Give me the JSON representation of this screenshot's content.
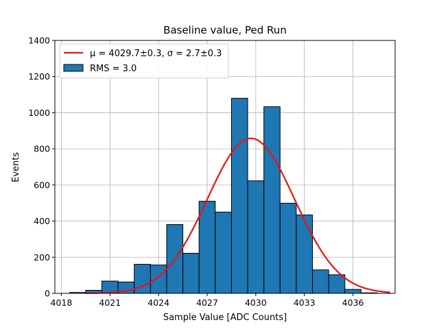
{
  "chart_data": {
    "type": "bar",
    "title": "Baseline value, Ped Run",
    "xlabel": "Sample Value [ADC Counts]",
    "ylabel": "Events",
    "xlim": [
      4017.6,
      4038.6
    ],
    "ylim": [
      0,
      1400
    ],
    "xticks": [
      4018,
      4021,
      4024,
      4027,
      4030,
      4033,
      4036
    ],
    "yticks": [
      0,
      200,
      400,
      600,
      800,
      1000,
      1200,
      1400
    ],
    "grid": true,
    "legend_position": "top-left",
    "bin_width": 1.0,
    "bins": [
      {
        "x": 4019,
        "count": 5
      },
      {
        "x": 4020,
        "count": 17
      },
      {
        "x": 4021,
        "count": 68
      },
      {
        "x": 4022,
        "count": 63
      },
      {
        "x": 4023,
        "count": 161
      },
      {
        "x": 4024,
        "count": 157
      },
      {
        "x": 4025,
        "count": 381
      },
      {
        "x": 4026,
        "count": 222
      },
      {
        "x": 4027,
        "count": 510
      },
      {
        "x": 4028,
        "count": 450
      },
      {
        "x": 4029,
        "count": 1080
      },
      {
        "x": 4030,
        "count": 623
      },
      {
        "x": 4031,
        "count": 1033
      },
      {
        "x": 4032,
        "count": 499
      },
      {
        "x": 4033,
        "count": 434
      },
      {
        "x": 4034,
        "count": 130
      },
      {
        "x": 4035,
        "count": 103
      },
      {
        "x": 4036,
        "count": 22
      },
      {
        "x": 4037,
        "count": 3
      }
    ],
    "series": [
      {
        "name": "μ = 4029.7±0.3, σ = 2.7±0.3",
        "type": "line",
        "color": "#ee1111",
        "mu": 4029.7,
        "sigma": 2.7,
        "amplitude": 858,
        "x_range": [
          4019.5,
          4038.3
        ]
      },
      {
        "name": "RMS = 3.0",
        "type": "bar",
        "color": "#1f77b4"
      }
    ]
  }
}
